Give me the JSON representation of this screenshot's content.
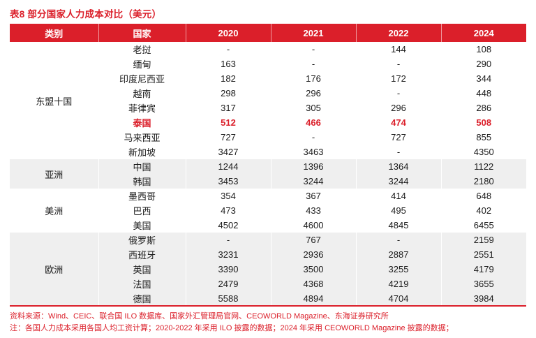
{
  "title": "表8  部分国家人力成本对比（美元）",
  "colors": {
    "accent_red": "#DB1F2A",
    "band_gray": "#EFEFEF",
    "header_text": "#FFFFFF",
    "body_text": "#1A1A1A"
  },
  "table": {
    "headers": [
      "类别",
      "国家",
      "2020",
      "2021",
      "2022",
      "2024"
    ],
    "groups": [
      {
        "category": "东盟十国",
        "shaded": false,
        "rows": [
          {
            "country": "老挝",
            "values": [
              "-",
              "-",
              "144",
              "108"
            ],
            "highlight": false
          },
          {
            "country": "缅甸",
            "values": [
              "163",
              "-",
              "-",
              "290"
            ],
            "highlight": false
          },
          {
            "country": "印度尼西亚",
            "values": [
              "182",
              "176",
              "172",
              "344"
            ],
            "highlight": false
          },
          {
            "country": "越南",
            "values": [
              "298",
              "296",
              "-",
              "448"
            ],
            "highlight": false
          },
          {
            "country": "菲律宾",
            "values": [
              "317",
              "305",
              "296",
              "286"
            ],
            "highlight": false
          },
          {
            "country": "泰国",
            "values": [
              "512",
              "466",
              "474",
              "508"
            ],
            "highlight": true
          },
          {
            "country": "马来西亚",
            "values": [
              "727",
              "-",
              "727",
              "855"
            ],
            "highlight": false
          },
          {
            "country": "新加坡",
            "values": [
              "3427",
              "3463",
              "-",
              "4350"
            ],
            "highlight": false
          }
        ]
      },
      {
        "category": "亚洲",
        "shaded": true,
        "rows": [
          {
            "country": "中国",
            "values": [
              "1244",
              "1396",
              "1364",
              "1122"
            ],
            "highlight": false
          },
          {
            "country": "韩国",
            "values": [
              "3453",
              "3244",
              "3244",
              "2180"
            ],
            "highlight": false
          }
        ]
      },
      {
        "category": "美洲",
        "shaded": false,
        "rows": [
          {
            "country": "墨西哥",
            "values": [
              "354",
              "367",
              "414",
              "648"
            ],
            "highlight": false
          },
          {
            "country": "巴西",
            "values": [
              "473",
              "433",
              "495",
              "402"
            ],
            "highlight": false
          },
          {
            "country": "美国",
            "values": [
              "4502",
              "4600",
              "4845",
              "6455"
            ],
            "highlight": false
          }
        ]
      },
      {
        "category": "欧洲",
        "shaded": true,
        "rows": [
          {
            "country": "俄罗斯",
            "values": [
              "-",
              "767",
              "-",
              "2159"
            ],
            "highlight": false
          },
          {
            "country": "西班牙",
            "values": [
              "3231",
              "2936",
              "2887",
              "2551"
            ],
            "highlight": false
          },
          {
            "country": "英国",
            "values": [
              "3390",
              "3500",
              "3255",
              "4179"
            ],
            "highlight": false
          },
          {
            "country": "法国",
            "values": [
              "2479",
              "4368",
              "4219",
              "3655"
            ],
            "highlight": false
          },
          {
            "country": "德国",
            "values": [
              "5588",
              "4894",
              "4704",
              "3984"
            ],
            "highlight": false
          }
        ]
      }
    ]
  },
  "footer": {
    "source": "资料来源：Wind、CEIC、联合国 ILO 数据库、国家外汇管理局官网、CEOWORLD Magazine、东海证券研究所",
    "note": "注：各国人力成本采用各国人均工资计算；2020-2022 年采用 ILO 披露的数据；2024 年采用 CEOWORLD Magazine 披露的数据；"
  }
}
